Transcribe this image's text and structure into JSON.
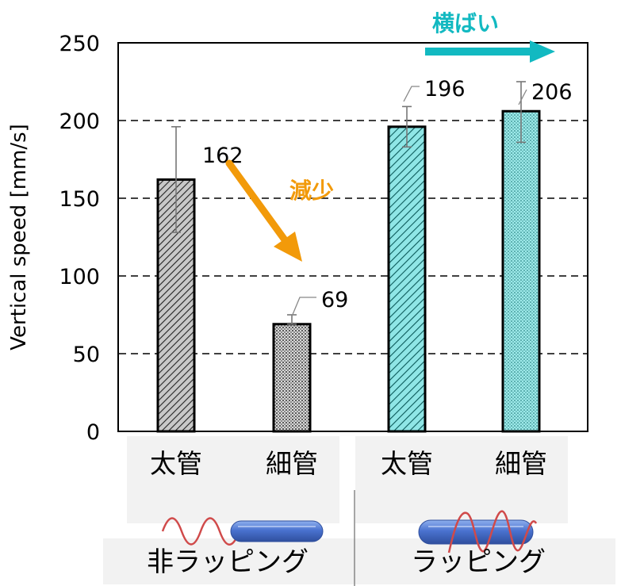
{
  "chart_data": {
    "type": "bar",
    "ylabel": "Vertical speed [mm/s]",
    "ylim": [
      0,
      250
    ],
    "yticks": [
      0,
      50,
      100,
      150,
      200,
      250
    ],
    "grid": "dashed horizontal",
    "categories": [
      "太管",
      "細管",
      "太管",
      "細管"
    ],
    "values": [
      162,
      69,
      196,
      206
    ],
    "error_high": [
      196,
      75,
      209,
      225
    ],
    "error_low": [
      128,
      69,
      183,
      186
    ],
    "value_labels": [
      "162",
      "69",
      "196",
      "206"
    ],
    "groups": [
      {
        "label": "非ラッピング",
        "members": [
          0,
          1
        ]
      },
      {
        "label": "ラッピング",
        "members": [
          2,
          3
        ]
      }
    ],
    "annotations": [
      {
        "text": "減少",
        "color": "#f29a0a"
      },
      {
        "text": "横ばい",
        "color": "#12b9c1"
      }
    ],
    "colors": {
      "unwrapped_bar": "#9a9a9a",
      "wrapped_bar": "#7fe0e0",
      "decrease": "#f29a0a",
      "flat": "#12b9c1"
    }
  }
}
